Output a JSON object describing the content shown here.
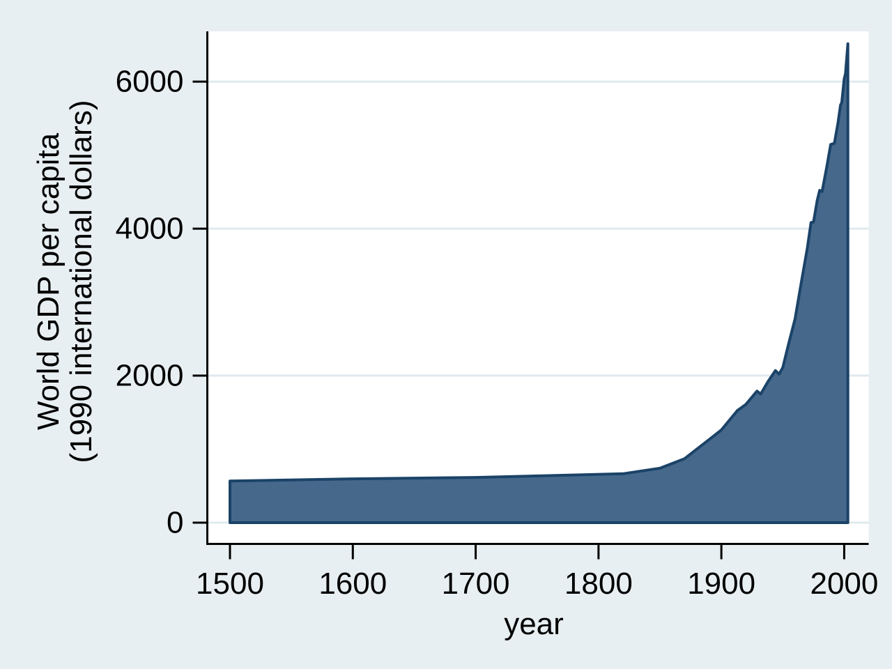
{
  "figure": {
    "y_axis_title_line1": "World GDP per capita",
    "y_axis_title_line2": "(1990 international dollars)",
    "x_axis_title": "year"
  },
  "chart_data": {
    "type": "area",
    "title": "",
    "xlabel": "year",
    "ylabel": "World GDP per capita (1990 international dollars)",
    "x_ticks": [
      1500,
      1600,
      1700,
      1800,
      1900,
      2000
    ],
    "y_ticks": [
      0,
      2000,
      4000,
      6000
    ],
    "xlim": [
      1482,
      2020
    ],
    "ylim": [
      -290,
      6685
    ],
    "grid": "horizontal",
    "legend": "none",
    "series": [
      {
        "name": "World GDP per capita (1990 international dollars)",
        "points": [
          [
            1500,
            566
          ],
          [
            1600,
            596
          ],
          [
            1700,
            615
          ],
          [
            1760,
            640
          ],
          [
            1820,
            666
          ],
          [
            1850,
            740
          ],
          [
            1870,
            870
          ],
          [
            1890,
            1130
          ],
          [
            1900,
            1261
          ],
          [
            1913,
            1525
          ],
          [
            1920,
            1610
          ],
          [
            1929,
            1790
          ],
          [
            1932,
            1750
          ],
          [
            1938,
            1920
          ],
          [
            1944,
            2070
          ],
          [
            1947,
            2020
          ],
          [
            1950,
            2111
          ],
          [
            1955,
            2450
          ],
          [
            1960,
            2773
          ],
          [
            1965,
            3260
          ],
          [
            1970,
            3736
          ],
          [
            1973,
            4083
          ],
          [
            1975,
            4090
          ],
          [
            1978,
            4380
          ],
          [
            1980,
            4520
          ],
          [
            1982,
            4505
          ],
          [
            1986,
            4855
          ],
          [
            1989,
            5145
          ],
          [
            1992,
            5160
          ],
          [
            1995,
            5445
          ],
          [
            1997,
            5680
          ],
          [
            1998,
            5715
          ],
          [
            2000,
            6038
          ],
          [
            2001,
            6105
          ],
          [
            2003,
            6516
          ]
        ]
      }
    ],
    "colors": {
      "background": "#e8eff2",
      "plot_background": "#ffffff",
      "gridline": "#dfeaee",
      "area_fill": "#46688b",
      "area_stroke": "#1b4368",
      "axis": "#000000",
      "text": "#000000"
    }
  }
}
